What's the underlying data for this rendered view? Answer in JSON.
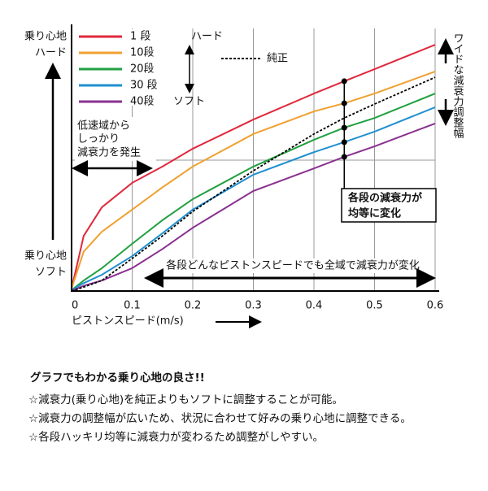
{
  "chart_data": {
    "type": "line",
    "x": [
      0,
      0.02,
      0.05,
      0.1,
      0.15,
      0.2,
      0.3,
      0.4,
      0.45,
      0.5,
      0.6
    ],
    "xlim": [
      0,
      0.6
    ],
    "xticks": [
      0,
      0.1,
      0.2,
      0.3,
      0.4,
      0.5,
      0.6
    ],
    "ylim": [
      0,
      100
    ],
    "x_label": "ピストンスピード(m/s)",
    "y_label_top": [
      "乗り心地",
      "ハード"
    ],
    "y_label_bottom": [
      "乗り心地",
      "ソフト"
    ],
    "series": [
      {
        "name": "1 段",
        "color": "#e0283c",
        "values": [
          0.9,
          21,
          31.9,
          41.2,
          47.4,
          54.2,
          65.3,
          75.2,
          79.9,
          84.5,
          93.8
        ]
      },
      {
        "name": "10段",
        "color": "#f0a030",
        "values": [
          1,
          15,
          22.6,
          31,
          39.5,
          47.4,
          59.8,
          68.4,
          71.5,
          75.2,
          83.6
        ]
      },
      {
        "name": "20段",
        "color": "#20a040",
        "values": [
          0.3,
          4,
          8.7,
          18,
          27,
          35,
          47.4,
          57.6,
          62.2,
          65.9,
          75.2
        ]
      },
      {
        "name": "30 段",
        "color": "#2090d0",
        "values": [
          0.3,
          3,
          6.2,
          13.3,
          22,
          31,
          44.3,
          52.9,
          56.7,
          60.7,
          70
        ]
      },
      {
        "name": "40段",
        "color": "#8a3090",
        "values": [
          0,
          2,
          4,
          8.7,
          16,
          24.1,
          38.1,
          46.7,
          51.1,
          55.1,
          63.8
        ]
      },
      {
        "name": "純正",
        "color": "#000000",
        "dashed": true,
        "values": [
          0,
          1.5,
          4,
          12.4,
          21,
          30.3,
          45.8,
          59.8,
          65.9,
          71.2,
          81.4
        ]
      }
    ],
    "legend_scale": [
      "ハード",
      "ソフト"
    ],
    "right_note": "ワイドな減衰力調整幅",
    "annotations": {
      "low_speed": [
        "低速域から",
        "しっかり",
        "減衰力を発生"
      ],
      "even": [
        "各段の減衰力が",
        "均等に変化"
      ],
      "all_range": "各段どんなピストンスピードでも全域で減衰力が変化"
    }
  },
  "description": {
    "heading": "グラフでもわかる乗り心地の良さ!!",
    "lines": [
      "☆減衰力(乗り心地)を純正よりもソフトに調整することが可能。",
      "☆減衰力の調整幅が広いため、状況に合わせて好みの乗り心地に調整できる。",
      "☆各段ハッキリ均等に減衰力が変わるため調整がしやすい。"
    ]
  }
}
